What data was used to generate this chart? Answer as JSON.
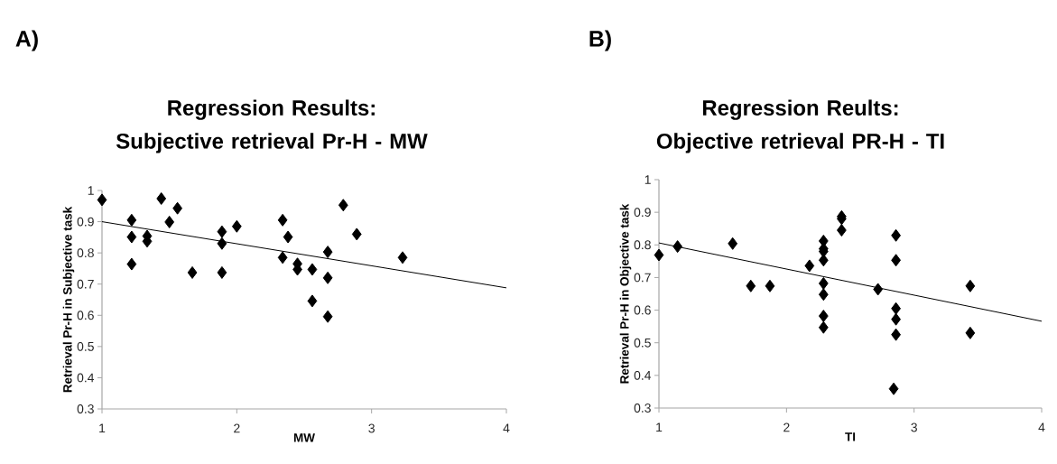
{
  "chart_data": [
    {
      "type": "scatter",
      "title": "Regression Results: Subjective retrieval Pr-H - MW",
      "xlabel": "MW",
      "ylabel": "Retrieval Pr-H in Subjective task",
      "annotations": [
        "A)"
      ],
      "xlim": [
        1,
        4
      ],
      "xticks": [
        1,
        2,
        3,
        4
      ],
      "ylim": [
        0.3,
        1
      ],
      "yticks": [
        0.3,
        0.4,
        0.5,
        0.6,
        0.7,
        0.8,
        0.9,
        1
      ],
      "series": [
        {
          "color": "#000000",
          "marker": "diamond",
          "x": [
            1.0,
            1.22,
            1.22,
            1.22,
            1.335,
            1.335,
            1.44,
            1.5,
            1.56,
            1.67,
            1.89,
            1.89,
            1.89,
            2.0,
            2.34,
            2.38,
            2.34,
            2.45,
            2.45,
            2.56,
            2.56,
            2.675,
            2.675,
            2.675,
            2.79,
            2.89,
            3.23
          ],
          "values": [
            0.97,
            0.905,
            0.851,
            0.764,
            0.854,
            0.837,
            0.974,
            0.899,
            0.943,
            0.737,
            0.868,
            0.83,
            0.737,
            0.885,
            0.905,
            0.851,
            0.785,
            0.765,
            0.747,
            0.747,
            0.646,
            0.803,
            0.72,
            0.596,
            0.953,
            0.86,
            0.785
          ]
        },
        {
          "type": "line",
          "color": "#000000",
          "marker": "none",
          "x": [
            1,
            4
          ],
          "values": [
            0.9,
            0.688
          ]
        }
      ]
    },
    {
      "type": "scatter",
      "title": "Regression Reults: Objective retrieval PR-H - TI",
      "xlabel": "TI",
      "ylabel": "Retrieval Pr-H in Objective task",
      "annotations": [
        "B)"
      ],
      "xlim": [
        1,
        4
      ],
      "xticks": [
        1,
        2,
        3,
        4
      ],
      "ylim": [
        0.3,
        1
      ],
      "yticks": [
        0.3,
        0.4,
        0.5,
        0.6,
        0.7,
        0.8,
        0.9,
        1
      ],
      "series": [
        {
          "color": "#000000",
          "marker": "diamond",
          "x": [
            1.0,
            1.146,
            1.578,
            1.72,
            1.87,
            2.18,
            2.29,
            2.29,
            2.29,
            2.29,
            2.29,
            2.29,
            2.29,
            2.29,
            2.432,
            2.432,
            2.432,
            2.717,
            2.858,
            2.858,
            2.858,
            2.858,
            2.858,
            2.84,
            3.44,
            3.44
          ],
          "values": [
            0.769,
            0.795,
            0.804,
            0.674,
            0.674,
            0.736,
            0.812,
            0.788,
            0.78,
            0.753,
            0.682,
            0.648,
            0.582,
            0.547,
            0.887,
            0.88,
            0.845,
            0.664,
            0.829,
            0.753,
            0.605,
            0.572,
            0.525,
            0.359,
            0.674,
            0.53
          ]
        },
        {
          "type": "line",
          "color": "#000000",
          "marker": "none",
          "x": [
            1,
            4
          ],
          "values": [
            0.806,
            0.566
          ]
        }
      ]
    }
  ]
}
